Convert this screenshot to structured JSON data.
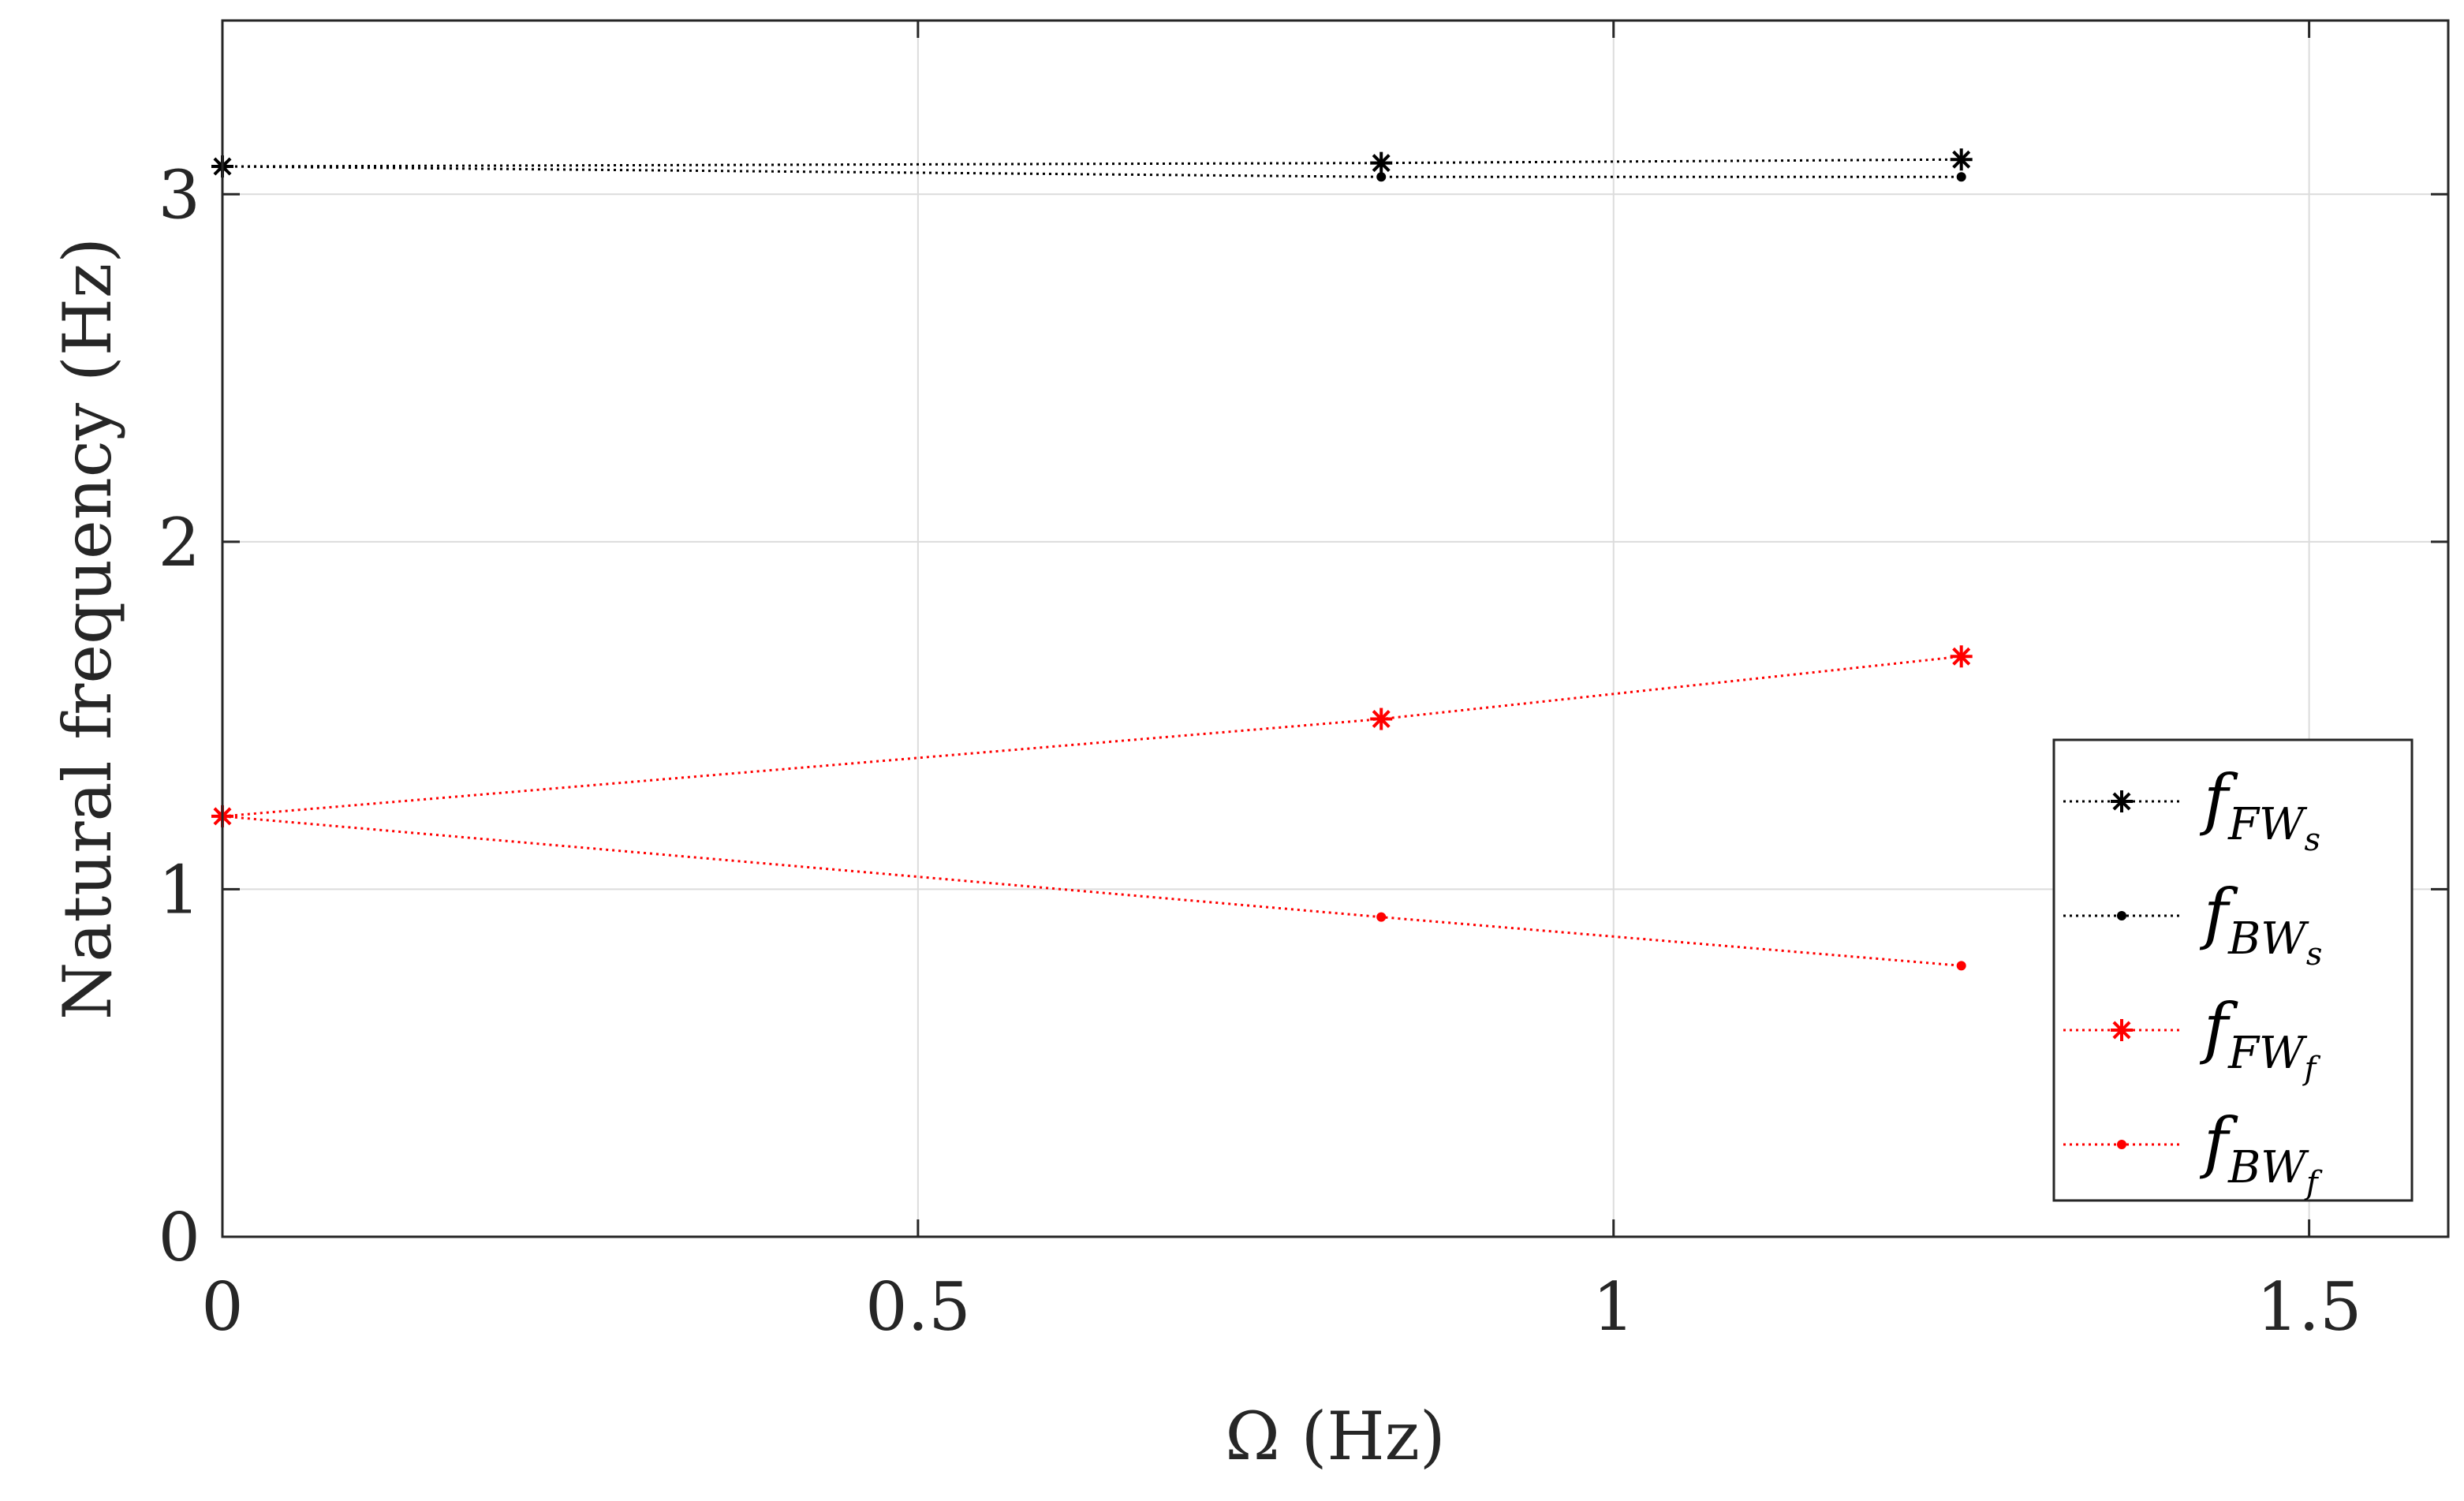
{
  "chart_data": {
    "type": "line",
    "title": "",
    "xlabel": "Ω (Hz)",
    "ylabel": "Natural frequency (Hz)",
    "xlim": [
      0,
      1.6
    ],
    "ylim": [
      0,
      3.5
    ],
    "x_ticks": [
      0,
      0.5,
      1,
      1.5
    ],
    "x_tick_labels": [
      "0",
      "0.5",
      "1",
      "1.5"
    ],
    "y_ticks": [
      0,
      1,
      2,
      3
    ],
    "y_tick_labels": [
      "0",
      "1",
      "2",
      "3"
    ],
    "grid": true,
    "legend_position": "bottom-right",
    "x": [
      0,
      0.833,
      1.25
    ],
    "series": [
      {
        "name": "f_{FW_s}",
        "label_main": "f",
        "label_sub": "FW",
        "label_subsub": "s",
        "values": [
          3.08,
          3.09,
          3.1
        ],
        "color": "#000000",
        "marker": "star",
        "line": "dotted"
      },
      {
        "name": "f_{BW_s}",
        "label_main": "f",
        "label_sub": "BW",
        "label_subsub": "s",
        "values": [
          3.08,
          3.05,
          3.05
        ],
        "color": "#000000",
        "marker": "dot",
        "line": "dotted"
      },
      {
        "name": "f_{FW_f}",
        "label_main": "f",
        "label_sub": "FW",
        "label_subsub": "f",
        "values": [
          1.21,
          1.49,
          1.67
        ],
        "color": "#ff0000",
        "marker": "star",
        "line": "dotted"
      },
      {
        "name": "f_{BW_f}",
        "label_main": "f",
        "label_sub": "BW",
        "label_subsub": "f",
        "values": [
          1.21,
          0.92,
          0.78
        ],
        "color": "#ff0000",
        "marker": "dot",
        "line": "dotted"
      }
    ]
  }
}
